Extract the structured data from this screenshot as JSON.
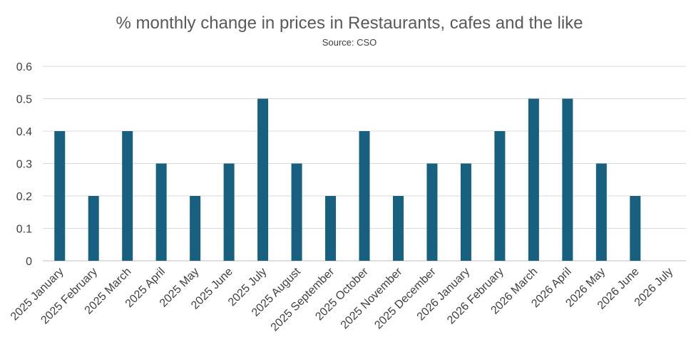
{
  "chart_data": {
    "type": "bar",
    "title": "% monthly change in prices in Restaurants, cafes and the like",
    "subtitle": "Source: CSO",
    "xlabel": "",
    "ylabel": "",
    "ylim": [
      0,
      0.6
    ],
    "yticks": [
      "0",
      "0.1",
      "0.2",
      "0.3",
      "0.4",
      "0.5",
      "0.6"
    ],
    "grid": true,
    "legend": "none",
    "bar_color": "#17607f",
    "categories": [
      "2025 January",
      "2025 February",
      "2025 March",
      "2025 April",
      "2025 May",
      "2025 June",
      "2025 July",
      "2025 August",
      "2025 September",
      "2025 October",
      "2025 November",
      "2025 December",
      "2026 January",
      "2026 February",
      "2026 March",
      "2026 April",
      "2026 May",
      "2026 June",
      "2026 July"
    ],
    "values": [
      0.4,
      0.2,
      0.4,
      0.3,
      0.2,
      0.3,
      0.5,
      0.3,
      0.2,
      0.4,
      0.2,
      0.3,
      0.3,
      0.4,
      0.5,
      0.5,
      0.3,
      0.2,
      null
    ]
  }
}
